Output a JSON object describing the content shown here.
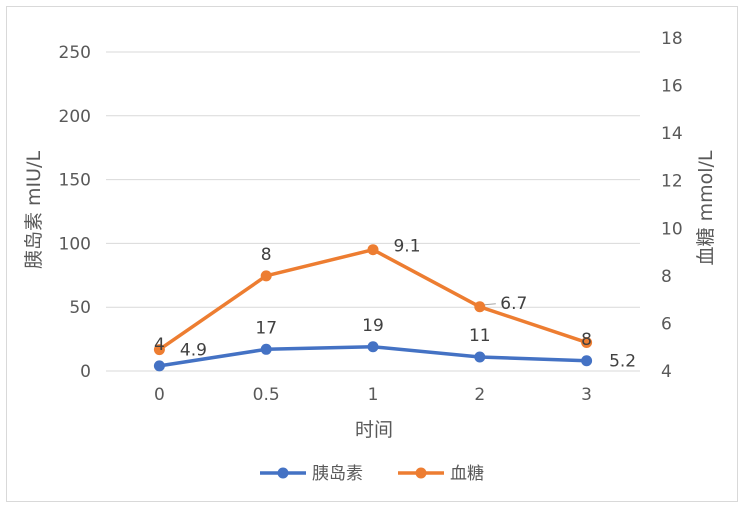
{
  "chart_data": {
    "type": "line",
    "categories": [
      "0",
      "0.5",
      "1",
      "2",
      "3"
    ],
    "xlabel": "时间",
    "y_left": {
      "label": "胰岛素 mIU/L",
      "lim": [
        0,
        250
      ],
      "ticks": [
        0,
        50,
        100,
        150,
        200,
        250
      ]
    },
    "y_right": {
      "label": "血糖 mmol/L",
      "lim": [
        4,
        18
      ],
      "ticks": [
        4,
        6,
        8,
        10,
        12,
        14,
        16,
        18
      ]
    },
    "grid": "horizontal",
    "legend_position": "bottom",
    "series": [
      {
        "name": "胰岛素",
        "axis": "left",
        "color": "#4472C4",
        "values": [
          4,
          17,
          19,
          11,
          8
        ],
        "labels": [
          "4",
          "17",
          "19",
          "11",
          "8"
        ]
      },
      {
        "name": "血糖",
        "axis": "right",
        "color": "#ED7D31",
        "values": [
          4.9,
          8,
          9.1,
          6.7,
          5.2
        ],
        "labels": [
          "4.9",
          "8",
          "9.1",
          "6.7",
          "5.2"
        ]
      }
    ]
  }
}
